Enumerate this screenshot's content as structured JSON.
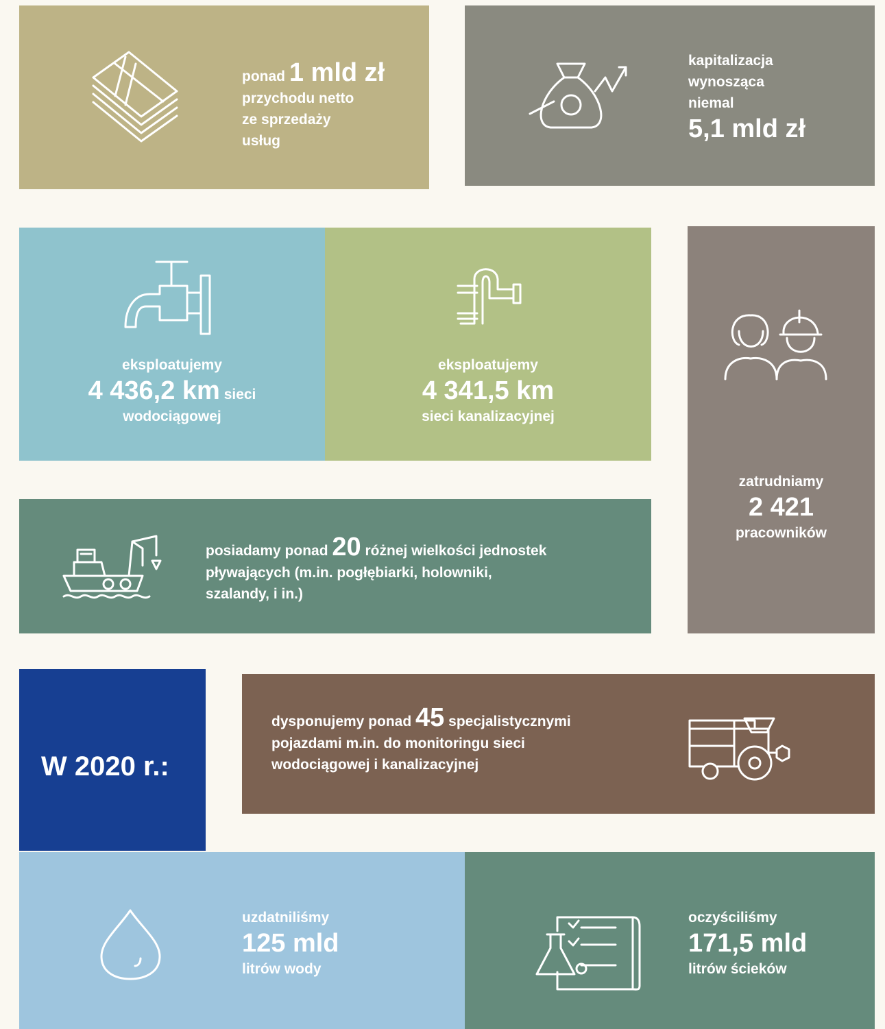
{
  "revenue": {
    "lead": "ponad",
    "value": "1 mld zł",
    "lines": [
      "przychodu netto",
      "ze sprzedaży",
      "usług"
    ]
  },
  "capitalization": {
    "lines": [
      "kapitalizacja",
      "wynosząca",
      "niemal"
    ],
    "value": "5,1 mld zł"
  },
  "water_network": {
    "lead": "eksploatujemy",
    "value": "4 436,2 km",
    "unit": "sieci",
    "tail": "wodociągowej"
  },
  "sewer_network": {
    "lead": "eksploatujemy",
    "value": "4 341,5 km",
    "tail": "sieci kanalizacyjnej"
  },
  "employees": {
    "lead": "zatrudniamy",
    "value": "2 421",
    "tail": "pracowników"
  },
  "vessels": {
    "lead": "posiadamy ponad",
    "value": "20",
    "text": "różnej wielkości jednostek",
    "lines": [
      "pływających (m.in. pogłębiarki, holowniki,",
      "szalandy, i in.)"
    ]
  },
  "year": {
    "title": "W 2020 r.:"
  },
  "vehicles": {
    "lead": "dysponujemy ponad",
    "value": "45",
    "text": "specjalistycznymi",
    "lines": [
      "pojazdami m.in. do monitoringu sieci",
      "wodociągowej i kanalizacyjnej"
    ]
  },
  "treated_water": {
    "lead": "uzdatniliśmy",
    "value": "125 mld",
    "tail": "litrów wody"
  },
  "treated_sewage": {
    "lead": "oczyściliśmy",
    "value": "171,5 mld",
    "tail": "litrów ścieków"
  }
}
